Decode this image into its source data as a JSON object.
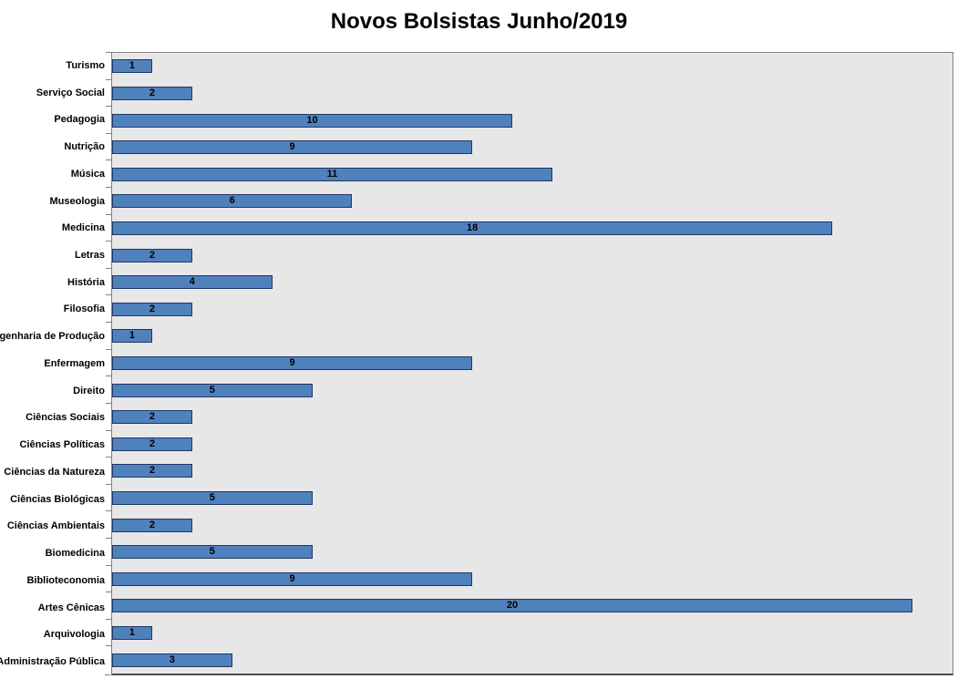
{
  "chart_data": {
    "type": "bar",
    "orientation": "horizontal",
    "title": "Novos Bolsistas Junho/2019",
    "categories": [
      "Turismo",
      "Serviço Social",
      "Pedagogia",
      "Nutrição",
      "Música",
      "Museologia",
      "Medicina",
      "Letras",
      "História",
      "Filosofia",
      "Engenharia de Produção",
      "Enfermagem",
      "Direito",
      "Ciências Sociais",
      "Ciências Políticas",
      "Ciências da Natureza",
      "Ciências Biológicas",
      "Ciências Ambientais",
      "Biomedicina",
      "Biblioteconomia",
      "Artes Cênicas",
      "Arquivologia",
      "Administração Pública"
    ],
    "values": [
      1,
      2,
      10,
      9,
      11,
      6,
      18,
      2,
      4,
      2,
      1,
      9,
      5,
      2,
      2,
      2,
      5,
      2,
      5,
      9,
      20,
      1,
      3
    ],
    "xlim": [
      0,
      21
    ],
    "xlabel": "",
    "ylabel": "",
    "grid": false,
    "legend_position": "none",
    "value_labels": "centered-inside-bar",
    "colors": {
      "bar_fill": "#4F81BD",
      "bar_border": "#1F3864",
      "plot_background": "#E7E7E7",
      "plot_border": "#808080",
      "text": "#000000",
      "page_background": "#FFFFFF"
    }
  }
}
